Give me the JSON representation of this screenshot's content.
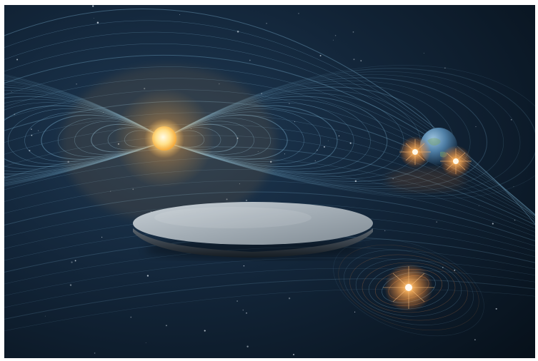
{
  "scene": {
    "background_color": "#0b1520",
    "field_line_color": "#7fb6d6",
    "star_color": "#ffd27a",
    "flare_color": "#ff9d3c",
    "planet_color": "#4f7fa6",
    "disc_color": "#a9b4bd"
  }
}
